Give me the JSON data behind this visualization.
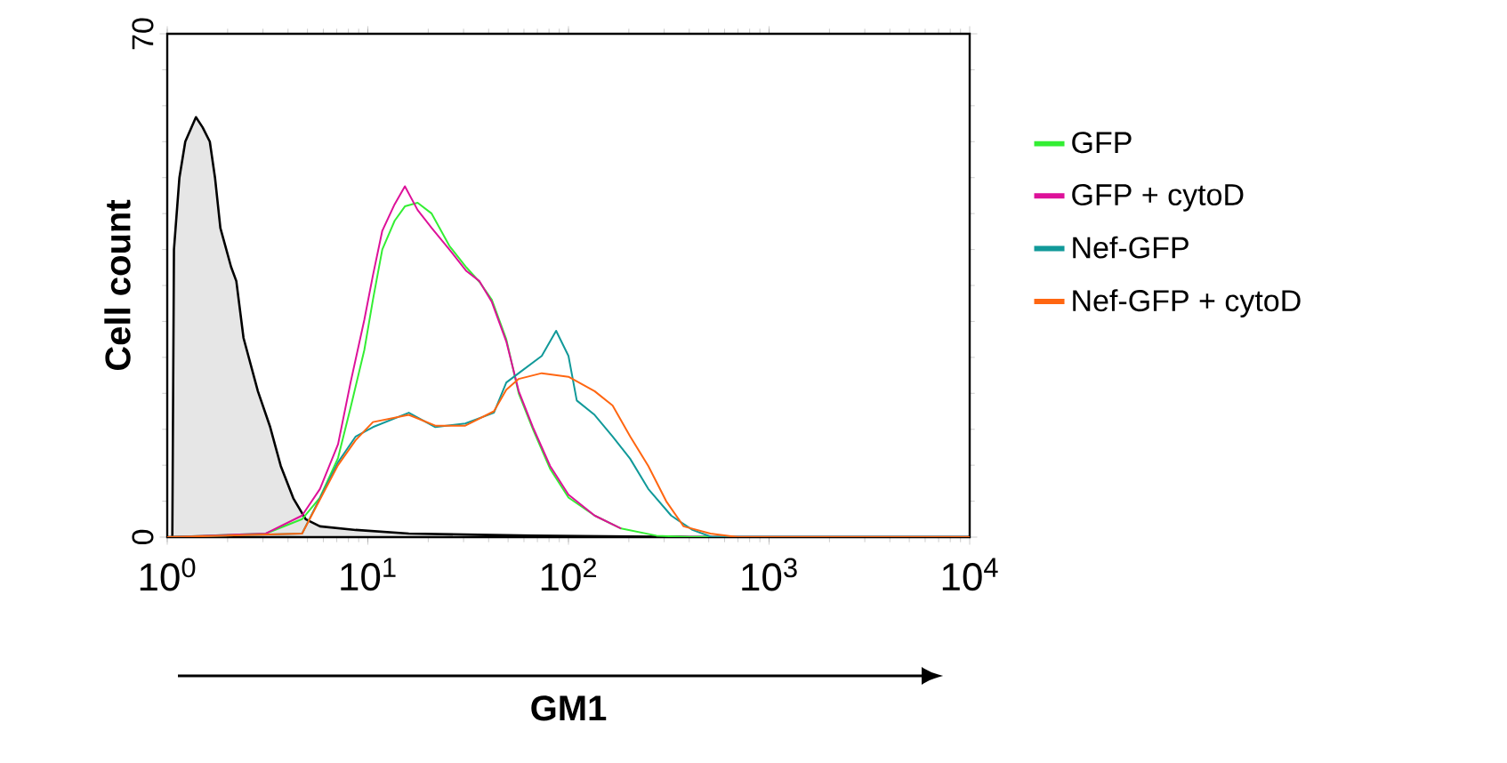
{
  "chart_data": {
    "type": "line",
    "xlabel": "GM1",
    "ylabel": "Cell count",
    "log": "x",
    "xlim": [
      1,
      10000
    ],
    "ylim": [
      0,
      70
    ],
    "xticks": [
      {
        "value": 1,
        "label": "10$^{0}$"
      },
      {
        "value": 10,
        "label": "10$^{1}$"
      },
      {
        "value": 100,
        "label": "10$^{2}$"
      },
      {
        "value": 1000,
        "label": "10$^{3}$"
      },
      {
        "value": 10000,
        "label": "10$^{4}$"
      }
    ],
    "yticks": [
      0,
      70
    ],
    "grid": false,
    "legend": "right",
    "marker": "none",
    "line_style": "solid",
    "series": [
      {
        "type": "area",
        "color": "#e6e6e6",
        "x": [
          1.06,
          1.08,
          1.15,
          1.23,
          1.39,
          1.5,
          1.63,
          1.73,
          1.84,
          2.08,
          2.21,
          2.4,
          2.83,
          3.26,
          3.68,
          4.25,
          4.9,
          5.77,
          8.7,
          16,
          66,
          400,
          10000
        ],
        "values": [
          0,
          40,
          50,
          55,
          58.4,
          57,
          55,
          50,
          43,
          37.6,
          35.6,
          27.7,
          20.3,
          15.3,
          9.9,
          5.4,
          2.5,
          1.5,
          1,
          0.5,
          0.2,
          0,
          0
        ]
      },
      {
        "name": "GFP",
        "color": "#33ee33",
        "x": [
          1,
          3.1,
          4.7,
          5.77,
          7.1,
          8.2,
          9.6,
          10.6,
          11.8,
          13.6,
          15.3,
          17.7,
          20.8,
          25.5,
          31,
          36,
          41.5,
          49,
          56.5,
          66.5,
          81,
          100,
          135,
          183,
          275,
          400,
          10000
        ],
        "values": [
          0,
          0.5,
          2.5,
          5.5,
          11,
          18,
          26,
          33,
          40,
          44,
          46,
          46.5,
          45,
          40.5,
          37.5,
          35.5,
          33,
          27.5,
          20,
          15,
          9.5,
          5.5,
          3,
          1.2,
          0.2,
          0,
          0
        ]
      },
      {
        "name": "GFP + cytoD",
        "color": "#dd1199",
        "x": [
          1,
          3.1,
          4.7,
          5.77,
          7.1,
          8.2,
          9.6,
          10.6,
          11.8,
          13.6,
          15.3,
          17.7,
          20.8,
          25.5,
          31,
          36,
          41.5,
          49,
          56.5,
          66.5,
          81,
          100,
          135,
          183
        ],
        "values": [
          0,
          0.5,
          3,
          6.7,
          12.9,
          21.5,
          30.2,
          36.4,
          42.6,
          46.3,
          48.8,
          45.5,
          43,
          40,
          37,
          35.6,
          32.7,
          27.2,
          20.3,
          15.3,
          9.9,
          5.9,
          3,
          1.2
        ]
      },
      {
        "name": "Nef-GFP",
        "color": "#119999",
        "x": [
          1,
          4.7,
          7.1,
          8.7,
          10.6,
          16,
          21.7,
          30.6,
          42.5,
          49,
          56.5,
          73.6,
          86.8,
          100,
          110,
          135,
          166,
          203,
          250,
          325,
          415,
          520,
          10000
        ],
        "values": [
          0,
          0.5,
          10.4,
          14,
          15.3,
          17.3,
          15.3,
          15.8,
          17.3,
          21.5,
          22.8,
          25.2,
          28.7,
          25.2,
          19,
          17,
          14,
          10.9,
          6.7,
          3,
          1,
          0,
          0
        ]
      },
      {
        "name": "Nef-GFP + cytoD",
        "color": "#ff6611",
        "x": [
          1,
          4.7,
          7.1,
          8.7,
          10.6,
          16,
          21.7,
          30.6,
          42.5,
          49,
          56.5,
          73.6,
          100,
          135,
          166,
          203,
          250,
          307,
          375,
          510,
          700,
          10000
        ],
        "values": [
          0,
          0.5,
          10,
          13.5,
          16,
          17,
          15.5,
          15.5,
          17.5,
          20.5,
          22,
          22.8,
          22.3,
          20.3,
          18.3,
          14,
          9.9,
          5,
          1.5,
          0.5,
          0,
          0
        ]
      }
    ]
  }
}
